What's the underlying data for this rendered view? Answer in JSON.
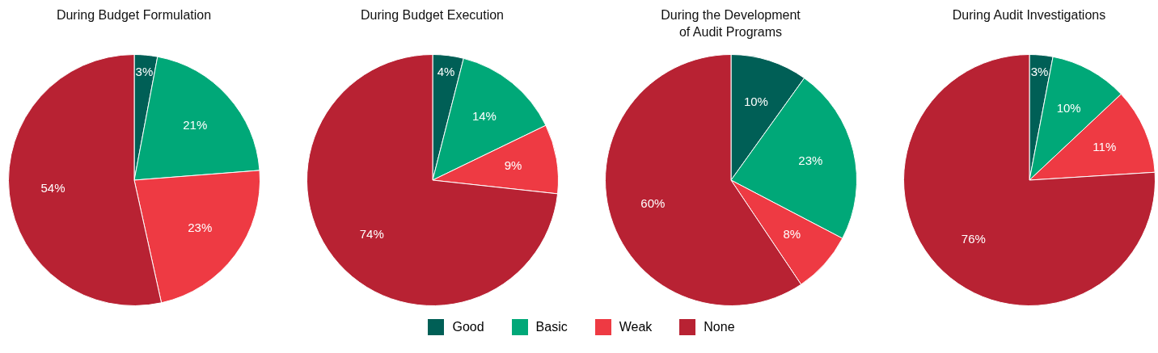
{
  "chart_data": [
    {
      "type": "pie",
      "title": "During Budget Formulation",
      "categories": [
        "Good",
        "Basic",
        "Weak",
        "None"
      ],
      "values": [
        3,
        21,
        23,
        54
      ],
      "value_labels": [
        "3%",
        "21%",
        "23%",
        "54%"
      ],
      "colors": [
        "#005f56",
        "#00a878",
        "#ee3a43",
        "#b82233"
      ],
      "legend": "bottom"
    },
    {
      "type": "pie",
      "title": "During Budget Execution",
      "categories": [
        null,
        null,
        null,
        null
      ],
      "values": [
        4,
        14,
        9,
        74
      ],
      "value_labels": [
        "4%",
        "14%",
        "9%",
        "74%"
      ],
      "colors": [
        "#005f56",
        "#00a878",
        "#ee3a43",
        "#b82233"
      ]
    },
    {
      "type": "pie",
      "title": "During the Development\nof Audit Programs",
      "categories": [
        null,
        null,
        null,
        null
      ],
      "values": [
        10,
        23,
        8,
        60
      ],
      "value_labels": [
        "10%",
        "23%",
        "8%",
        "60%"
      ],
      "colors": [
        "#005f56",
        "#00a878",
        "#ee3a43",
        "#b82233"
      ]
    },
    {
      "type": "pie",
      "title": "During Audit Investigations",
      "categories": [
        null,
        null,
        null,
        null
      ],
      "values": [
        3,
        10,
        11,
        76
      ],
      "value_labels": [
        "3%",
        "10%",
        "11%",
        "76%"
      ],
      "colors": [
        "#005f56",
        "#00a878",
        "#ee3a43",
        "#b82233"
      ]
    }
  ]
}
